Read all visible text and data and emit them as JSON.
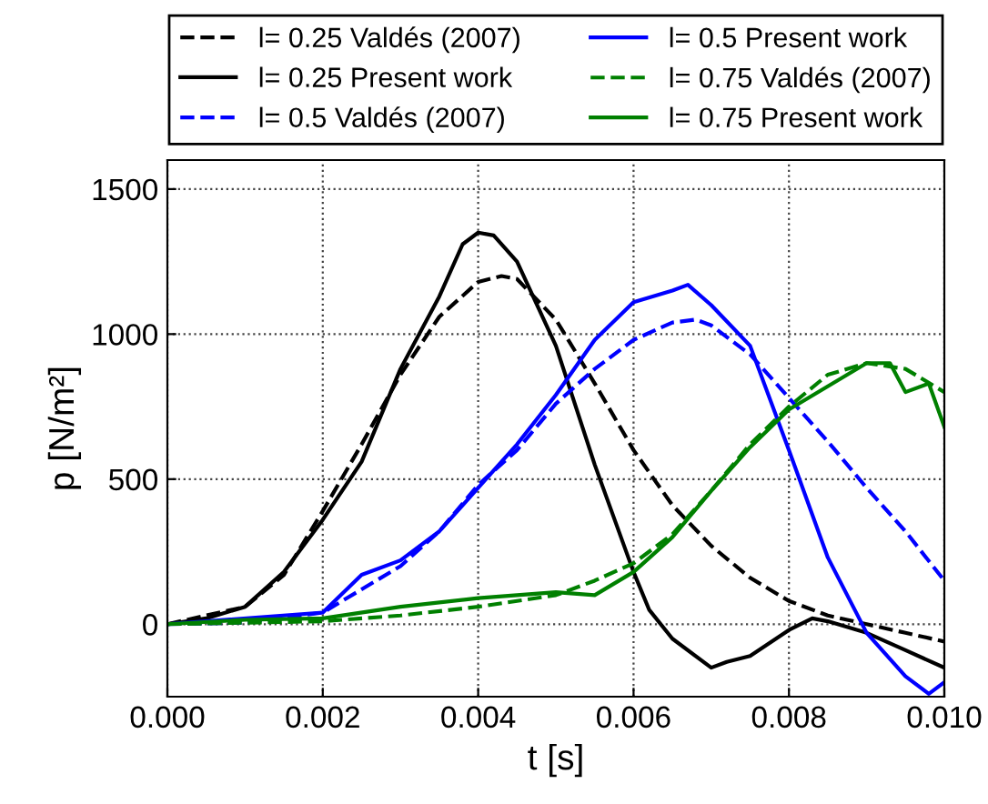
{
  "chart_data": {
    "type": "line",
    "xlabel": "t [s]",
    "ylabel": "p [N/m²]",
    "xlim": [
      0,
      0.01
    ],
    "ylim": [
      -250,
      1600
    ],
    "xticks": [
      {
        "value": 0,
        "label": "0.000"
      },
      {
        "value": 0.002,
        "label": "0.002"
      },
      {
        "value": 0.004,
        "label": "0.004"
      },
      {
        "value": 0.006,
        "label": "0.006"
      },
      {
        "value": 0.008,
        "label": "0.008"
      },
      {
        "value": 0.01,
        "label": "0.010"
      }
    ],
    "yticks": [
      0,
      500,
      1000,
      1500
    ],
    "grid": true,
    "legend": "top",
    "series": [
      {
        "name": "l= 0.25 Valdés (2007)",
        "color": "#000000",
        "line_style": "dashed",
        "x": [
          0,
          0.001,
          0.0015,
          0.002,
          0.0025,
          0.003,
          0.0035,
          0.004,
          0.0043,
          0.0045,
          0.005,
          0.0055,
          0.006,
          0.0065,
          0.007,
          0.0075,
          0.008,
          0.0085,
          0.009,
          0.0095,
          0.01
        ],
        "values": [
          0,
          60,
          170,
          390,
          620,
          860,
          1060,
          1180,
          1200,
          1190,
          1050,
          830,
          600,
          410,
          270,
          160,
          80,
          30,
          0,
          -30,
          -60
        ]
      },
      {
        "name": "l= 0.25 Present work",
        "color": "#000000",
        "line_style": "solid",
        "x": [
          0,
          0.0005,
          0.001,
          0.0015,
          0.002,
          0.0025,
          0.003,
          0.0035,
          0.0038,
          0.004,
          0.0042,
          0.0045,
          0.005,
          0.0055,
          0.006,
          0.0062,
          0.0065,
          0.007,
          0.0072,
          0.0075,
          0.008,
          0.0083,
          0.0085,
          0.009,
          0.0095,
          0.01
        ],
        "values": [
          0,
          20,
          60,
          180,
          360,
          560,
          880,
          1130,
          1310,
          1350,
          1340,
          1250,
          960,
          550,
          180,
          50,
          -50,
          -150,
          -130,
          -110,
          -20,
          20,
          10,
          -30,
          -90,
          -150
        ]
      },
      {
        "name": "l= 0.5 Valdés (2007)",
        "color": "#0000ff",
        "line_style": "dashed",
        "x": [
          0,
          0.001,
          0.002,
          0.0025,
          0.003,
          0.0035,
          0.004,
          0.0045,
          0.005,
          0.0055,
          0.006,
          0.0065,
          0.0068,
          0.007,
          0.0075,
          0.008,
          0.0085,
          0.009,
          0.0095,
          0.01
        ],
        "values": [
          0,
          5,
          40,
          120,
          200,
          320,
          480,
          600,
          760,
          880,
          980,
          1040,
          1050,
          1030,
          930,
          780,
          630,
          470,
          320,
          150
        ]
      },
      {
        "name": "l= 0.5 Present work",
        "color": "#0000ff",
        "line_style": "solid",
        "x": [
          0,
          0.002,
          0.0025,
          0.003,
          0.0035,
          0.004,
          0.0045,
          0.005,
          0.0055,
          0.006,
          0.0065,
          0.0067,
          0.007,
          0.0075,
          0.008,
          0.0085,
          0.009,
          0.0095,
          0.0098,
          0.01
        ],
        "values": [
          0,
          40,
          170,
          220,
          320,
          470,
          620,
          790,
          980,
          1110,
          1150,
          1170,
          1100,
          960,
          600,
          230,
          -30,
          -180,
          -240,
          -200
        ]
      },
      {
        "name": "l= 0.75 Valdés (2007)",
        "color": "#008000",
        "line_style": "dashed",
        "x": [
          0,
          0.002,
          0.003,
          0.004,
          0.005,
          0.0055,
          0.006,
          0.0065,
          0.007,
          0.0075,
          0.008,
          0.0085,
          0.009,
          0.0095,
          0.01
        ],
        "values": [
          0,
          10,
          30,
          60,
          100,
          150,
          210,
          310,
          460,
          620,
          750,
          860,
          900,
          880,
          800
        ]
      },
      {
        "name": "l= 0.75 Present work",
        "color": "#008000",
        "line_style": "solid",
        "x": [
          0,
          0.001,
          0.002,
          0.003,
          0.004,
          0.005,
          0.0055,
          0.006,
          0.0065,
          0.007,
          0.0075,
          0.008,
          0.0085,
          0.009,
          0.0093,
          0.0095,
          0.0098,
          0.01
        ],
        "values": [
          0,
          15,
          20,
          60,
          90,
          110,
          100,
          180,
          300,
          460,
          610,
          740,
          820,
          900,
          900,
          800,
          830,
          680
        ]
      }
    ]
  }
}
